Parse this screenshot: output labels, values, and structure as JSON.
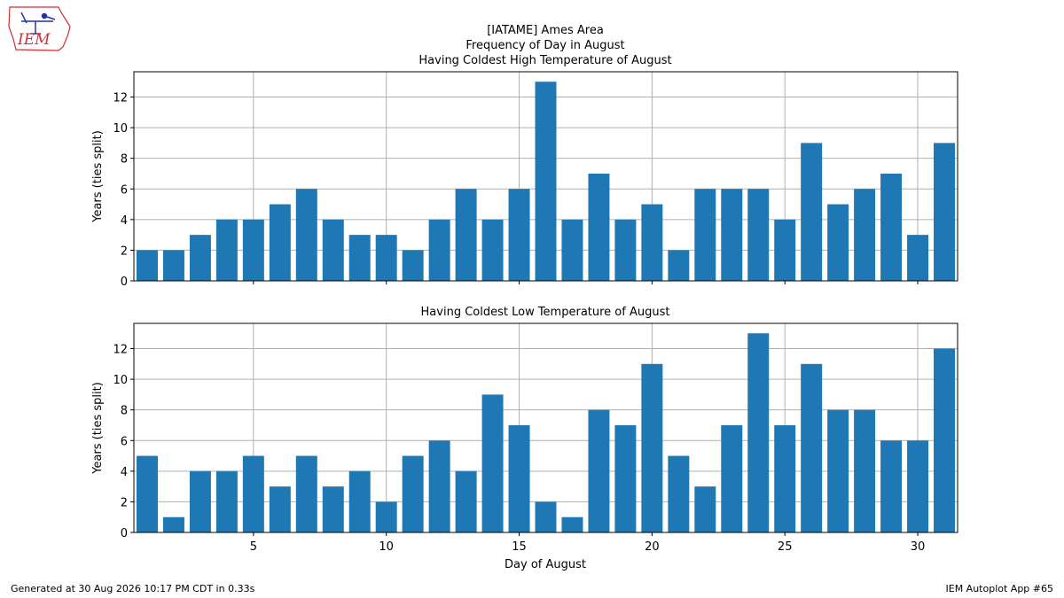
{
  "header": {
    "title_line1": "[IATAME] Ames Area",
    "title_line2": "Frequency of Day in August",
    "logo_text": "IEM"
  },
  "footer": {
    "generated": "Generated at 30 Aug 2026 10:17 PM CDT in 0.33s",
    "app": "IEM Autoplot App #65"
  },
  "colors": {
    "bar": "#1f77b4",
    "logo": "#d03030"
  },
  "chart_data": [
    {
      "type": "bar",
      "title": "Having Coldest High Temperature of August",
      "xlabel": "",
      "ylabel": "Years (ties split)",
      "categories": [
        1,
        2,
        3,
        4,
        5,
        6,
        7,
        8,
        9,
        10,
        11,
        12,
        13,
        14,
        15,
        16,
        17,
        18,
        19,
        20,
        21,
        22,
        23,
        24,
        25,
        26,
        27,
        28,
        29,
        30,
        31
      ],
      "values": [
        2,
        2,
        3,
        4,
        4,
        5,
        6,
        4,
        3,
        3,
        2,
        4,
        6,
        4,
        6,
        13,
        4,
        7,
        4,
        5,
        2,
        6,
        6,
        6,
        4,
        9,
        5,
        6,
        7,
        3,
        9
      ],
      "xticks": [
        5,
        10,
        15,
        20,
        25,
        30
      ],
      "yticks": [
        0,
        2,
        4,
        6,
        8,
        10,
        12
      ],
      "xlim": [
        0.5,
        31.5
      ],
      "ylim": [
        0,
        13.65
      ],
      "grid": true
    },
    {
      "type": "bar",
      "title": "Having Coldest Low Temperature of August",
      "xlabel": "Day of August",
      "ylabel": "Years (ties split)",
      "categories": [
        1,
        2,
        3,
        4,
        5,
        6,
        7,
        8,
        9,
        10,
        11,
        12,
        13,
        14,
        15,
        16,
        17,
        18,
        19,
        20,
        21,
        22,
        23,
        24,
        25,
        26,
        27,
        28,
        29,
        30,
        31
      ],
      "values": [
        5,
        1,
        4,
        4,
        5,
        3,
        5,
        3,
        4,
        2,
        5,
        6,
        4,
        9,
        7,
        2,
        1,
        8,
        7,
        11,
        5,
        3,
        7,
        13,
        7,
        11,
        8,
        8,
        6,
        6,
        12
      ],
      "xticks": [
        5,
        10,
        15,
        20,
        25,
        30
      ],
      "yticks": [
        0,
        2,
        4,
        6,
        8,
        10,
        12
      ],
      "xlim": [
        0.5,
        31.5
      ],
      "ylim": [
        0,
        13.65
      ],
      "grid": true
    }
  ]
}
